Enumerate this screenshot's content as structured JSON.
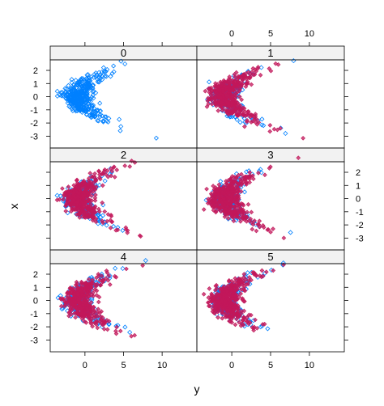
{
  "chart_data": {
    "type": "scatter",
    "xlabel": "y",
    "ylabel": "x",
    "xlim": [
      -4.5,
      14.5
    ],
    "ylim": [
      -3.9,
      2.8
    ],
    "x_ticks": [
      0,
      5,
      10
    ],
    "x_tick_labels": [
      "0",
      "5",
      "10"
    ],
    "y_ticks": [
      -3,
      -2,
      -1,
      0,
      1,
      2
    ],
    "y_tick_labels": [
      "-3",
      "-2",
      "-1",
      "0",
      "1",
      "2"
    ],
    "panels": [
      "0",
      "1",
      "2",
      "3",
      "4",
      "5"
    ],
    "series": [
      {
        "marker": "open-diamond",
        "color": "#0080ff"
      },
      {
        "marker": "filled-diamond",
        "color": "#c2185b"
      }
    ],
    "cluster_shape": "parabola: y ≈ x^2 - 1 with noise; overlay series appears in panels 1–5",
    "grid": false,
    "legend": "none"
  },
  "colors": {
    "strip_bg": "#f2f2f2",
    "open_series": "#0080ff",
    "filled_series": "#c2185b",
    "frame": "#000000"
  }
}
